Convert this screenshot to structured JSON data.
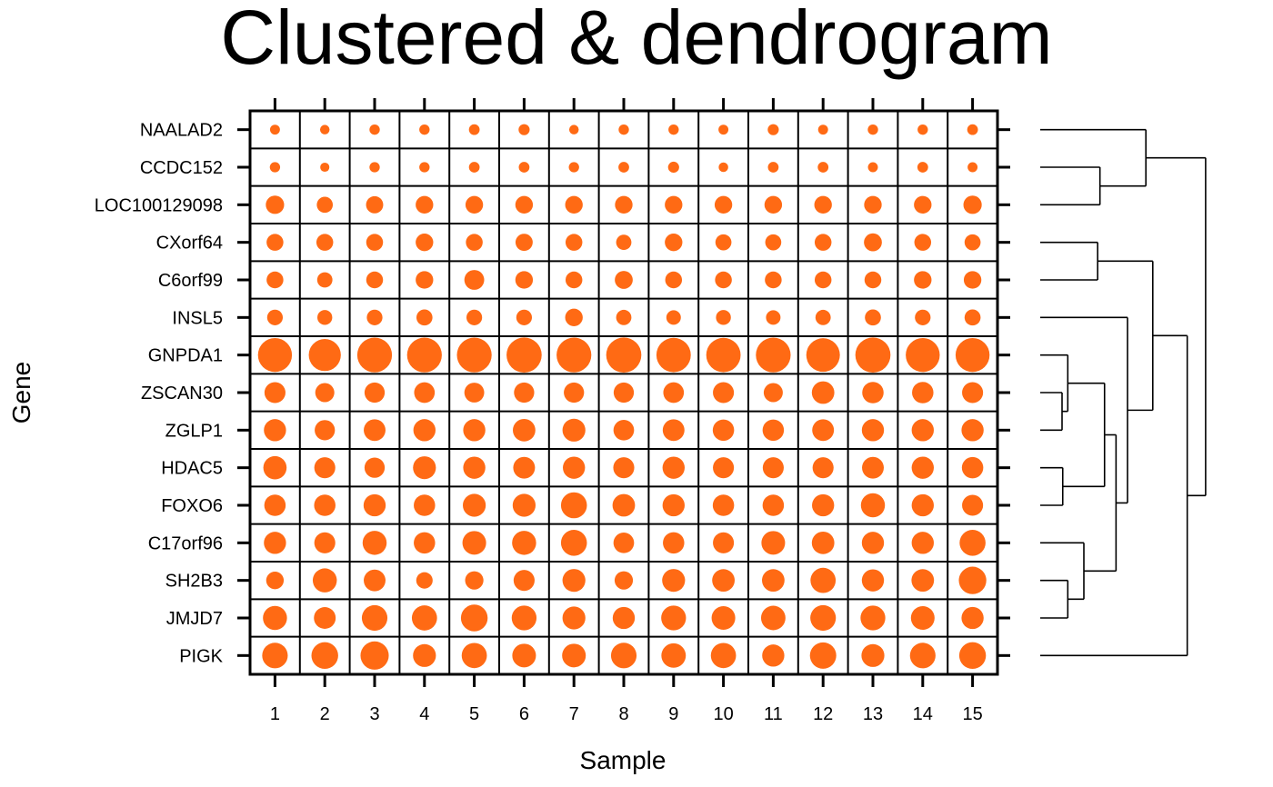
{
  "chart_data": {
    "type": "bubble-matrix-with-dendrogram",
    "title": "Clustered & dendrogram",
    "xlabel": "Sample",
    "ylabel": "Gene",
    "x_categories": [
      "1",
      "2",
      "3",
      "4",
      "5",
      "6",
      "7",
      "8",
      "9",
      "10",
      "11",
      "12",
      "13",
      "14",
      "15"
    ],
    "y_categories": [
      "NAALAD2",
      "CCDC152",
      "LOC100129098",
      "CXorf64",
      "C6orf99",
      "INSL5",
      "GNPDA1",
      "ZSCAN30",
      "ZGLP1",
      "HDAC5",
      "FOXO6",
      "C17orf96",
      "SH2B3",
      "JMJD7",
      "PIGK"
    ],
    "marker_color": "#ff6a14",
    "grid": true,
    "dendrogram_side": "right",
    "values": [
      [
        0.26,
        0.25,
        0.27,
        0.27,
        0.28,
        0.29,
        0.25,
        0.27,
        0.27,
        0.26,
        0.29,
        0.26,
        0.27,
        0.27,
        0.28
      ],
      [
        0.27,
        0.24,
        0.27,
        0.27,
        0.28,
        0.28,
        0.27,
        0.28,
        0.29,
        0.25,
        0.28,
        0.28,
        0.26,
        0.28,
        0.26
      ],
      [
        0.48,
        0.42,
        0.45,
        0.46,
        0.46,
        0.46,
        0.46,
        0.46,
        0.46,
        0.46,
        0.46,
        0.46,
        0.46,
        0.46,
        0.48
      ],
      [
        0.44,
        0.44,
        0.44,
        0.46,
        0.44,
        0.45,
        0.44,
        0.4,
        0.46,
        0.42,
        0.42,
        0.44,
        0.47,
        0.44,
        0.42
      ],
      [
        0.44,
        0.4,
        0.44,
        0.46,
        0.52,
        0.46,
        0.44,
        0.47,
        0.44,
        0.44,
        0.44,
        0.44,
        0.44,
        0.46,
        0.46
      ],
      [
        0.41,
        0.39,
        0.41,
        0.42,
        0.41,
        0.41,
        0.46,
        0.4,
        0.38,
        0.39,
        0.38,
        0.4,
        0.42,
        0.41,
        0.42
      ],
      [
        0.89,
        0.84,
        0.91,
        0.91,
        0.91,
        0.92,
        0.91,
        0.92,
        0.9,
        0.9,
        0.91,
        0.88,
        0.92,
        0.89,
        0.89
      ],
      [
        0.55,
        0.5,
        0.53,
        0.54,
        0.52,
        0.53,
        0.53,
        0.53,
        0.54,
        0.55,
        0.5,
        0.59,
        0.56,
        0.56,
        0.55
      ],
      [
        0.58,
        0.53,
        0.57,
        0.58,
        0.58,
        0.59,
        0.6,
        0.54,
        0.57,
        0.56,
        0.56,
        0.57,
        0.58,
        0.58,
        0.58
      ],
      [
        0.61,
        0.55,
        0.53,
        0.6,
        0.58,
        0.57,
        0.58,
        0.55,
        0.58,
        0.55,
        0.55,
        0.55,
        0.57,
        0.58,
        0.56
      ],
      [
        0.56,
        0.56,
        0.58,
        0.56,
        0.6,
        0.6,
        0.68,
        0.59,
        0.58,
        0.56,
        0.56,
        0.58,
        0.63,
        0.58,
        0.55
      ],
      [
        0.58,
        0.55,
        0.63,
        0.56,
        0.62,
        0.63,
        0.68,
        0.54,
        0.56,
        0.55,
        0.62,
        0.59,
        0.58,
        0.58,
        0.68
      ],
      [
        0.46,
        0.63,
        0.57,
        0.43,
        0.48,
        0.55,
        0.6,
        0.48,
        0.6,
        0.59,
        0.59,
        0.66,
        0.58,
        0.59,
        0.72
      ],
      [
        0.63,
        0.57,
        0.67,
        0.66,
        0.7,
        0.65,
        0.6,
        0.58,
        0.65,
        0.62,
        0.64,
        0.67,
        0.65,
        0.62,
        0.58
      ],
      [
        0.67,
        0.7,
        0.74,
        0.6,
        0.66,
        0.62,
        0.62,
        0.67,
        0.64,
        0.66,
        0.58,
        0.69,
        0.6,
        0.67,
        0.7
      ]
    ],
    "dendrogram": {
      "leaves": [
        "NAALAD2",
        "CCDC152",
        "LOC100129098",
        "CXorf64",
        "C6orf99",
        "INSL5",
        "GNPDA1",
        "ZSCAN30",
        "ZGLP1",
        "HDAC5",
        "FOXO6",
        "C17orf96",
        "SH2B3",
        "JMJD7",
        "PIGK"
      ],
      "merges": [
        {
          "a": 7,
          "b": 8,
          "height": 0.95
        },
        {
          "a": 9,
          "b": 10,
          "height": 0.98
        },
        {
          "a": 12,
          "b": 13,
          "height": 1.2
        },
        {
          "a": 3,
          "b": 4,
          "height": 2.5
        },
        {
          "a": 6,
          "b": -1,
          "height": 1.2
        },
        {
          "a": 11,
          "b": -3,
          "height": 1.9
        },
        {
          "a": 1,
          "b": 2,
          "height": 2.6
        },
        {
          "a": -5,
          "b": -2,
          "height": 2.8
        },
        {
          "a": -8,
          "b": -6,
          "height": 3.3
        },
        {
          "a": 5,
          "b": -9,
          "height": 3.8
        },
        {
          "a": -4,
          "b": -10,
          "height": 4.9
        },
        {
          "a": 0,
          "b": -7,
          "height": 4.6
        },
        {
          "a": -11,
          "b": 14,
          "height": 6.4
        },
        {
          "a": -12,
          "b": -13,
          "height": 7.2
        }
      ],
      "max_height": 7.6
    }
  }
}
